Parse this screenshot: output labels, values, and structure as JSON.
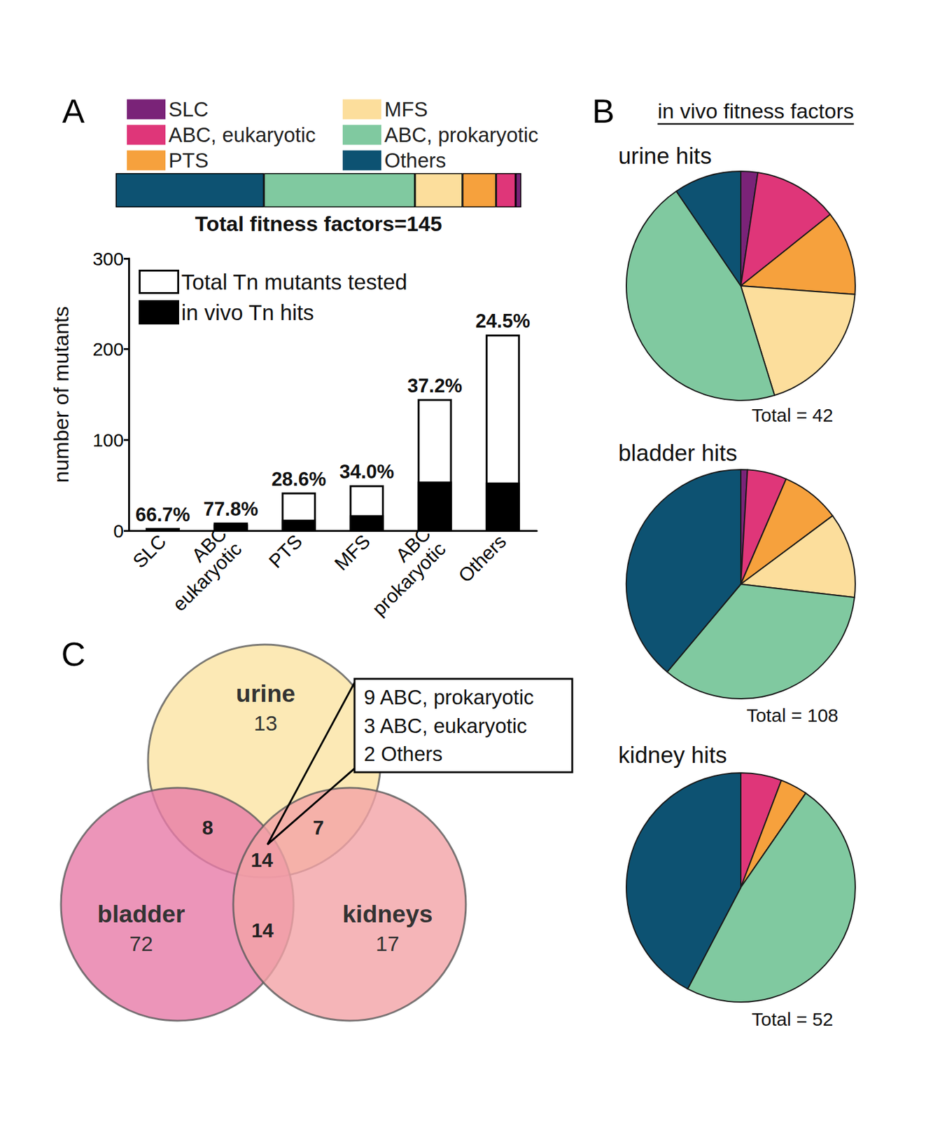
{
  "chart_data": [
    {
      "panel": "A",
      "type": "bar",
      "orientation": "horizontal",
      "stacked": true,
      "title": "Total fitness factors=145",
      "categories": [
        null
      ],
      "xlim": [
        0,
        145
      ],
      "tick_labels": false,
      "legend": "top",
      "series": [
        {
          "name": "Others",
          "color": "#0d5272",
          "values": [
            53
          ]
        },
        {
          "name": "ABC, prokaryotic",
          "color": "#80c9a0",
          "values": [
            54
          ]
        },
        {
          "name": "MFS",
          "color": "#fcde9c",
          "values": [
            17
          ]
        },
        {
          "name": "PTS",
          "color": "#f6a13d",
          "values": [
            12
          ]
        },
        {
          "name": "ABC, eukaryotic",
          "color": "#df3679",
          "values": [
            7
          ]
        },
        {
          "name": "SLC",
          "color": "#7a2378",
          "values": [
            2
          ]
        }
      ]
    },
    {
      "type": "bar",
      "categories": [
        "SLC",
        "ABC\neukaryotic",
        "PTS",
        "MFS",
        "ABC\nprokaryotic",
        "Others"
      ],
      "ylabel": "number of mutants",
      "ylim": [
        0,
        300
      ],
      "yticks": [
        0,
        100,
        200,
        300
      ],
      "grid": false,
      "legend": "upper left",
      "series": [
        {
          "name": "Total Tn mutants tested",
          "color": "#ffffff",
          "values": [
            3,
            9,
            42,
            50,
            145,
            216
          ]
        },
        {
          "name": "in vivo Tn hits",
          "color": "#000000",
          "values": [
            2,
            7,
            12,
            17,
            54,
            53
          ]
        }
      ],
      "annotations": [
        "66.7%",
        "77.8%",
        "28.6%",
        "34.0%",
        "37.2%",
        "24.5%"
      ]
    },
    {
      "panel": "B",
      "panel_title": "in vivo fitness factors",
      "type": "pie",
      "title": "urine hits",
      "annotation": "Total = 42",
      "categories": [
        "SLC",
        "ABC, eukaryotic",
        "PTS",
        "MFS",
        "ABC, prokaryotic",
        "Others"
      ],
      "values": [
        1,
        5,
        5,
        8,
        19,
        4
      ],
      "colors": [
        "#7a2378",
        "#df3679",
        "#f6a13d",
        "#fcde9c",
        "#80c9a0",
        "#0d5272"
      ]
    },
    {
      "type": "pie",
      "title": "bladder hits",
      "annotation": "Total = 108",
      "categories": [
        "SLC",
        "ABC, eukaryotic",
        "PTS",
        "MFS",
        "ABC, prokaryotic",
        "Others"
      ],
      "values": [
        1,
        6,
        9,
        13,
        37,
        42
      ],
      "colors": [
        "#7a2378",
        "#df3679",
        "#f6a13d",
        "#fcde9c",
        "#80c9a0",
        "#0d5272"
      ]
    },
    {
      "type": "pie",
      "title": "kidney hits",
      "annotation": "Total = 52",
      "categories": [
        "SLC",
        "ABC, eukaryotic",
        "PTS",
        "MFS",
        "ABC, prokaryotic",
        "Others"
      ],
      "values": [
        0,
        3,
        2,
        0,
        25,
        22
      ],
      "colors": [
        "#7a2378",
        "#df3679",
        "#f6a13d",
        "#fcde9c",
        "#80c9a0",
        "#0d5272"
      ]
    },
    {
      "panel": "C",
      "type": "venn",
      "sets": [
        {
          "name": "urine",
          "count": 13,
          "color": "#fbe3a3"
        },
        {
          "name": "bladder",
          "count": 72,
          "color": "#e77aa7"
        },
        {
          "name": "kidneys",
          "count": 17,
          "color": "#f3a3a6"
        }
      ],
      "intersections": [
        {
          "sets": [
            "urine",
            "bladder"
          ],
          "count": 8
        },
        {
          "sets": [
            "urine",
            "kidneys"
          ],
          "count": 7
        },
        {
          "sets": [
            "bladder",
            "kidneys"
          ],
          "count": 14
        },
        {
          "sets": [
            "urine",
            "bladder",
            "kidneys"
          ],
          "count": 14
        }
      ],
      "annotations": [
        "9 ABC, prokaryotic",
        "3 ABC, eukaryotic",
        "2 Others"
      ]
    }
  ]
}
